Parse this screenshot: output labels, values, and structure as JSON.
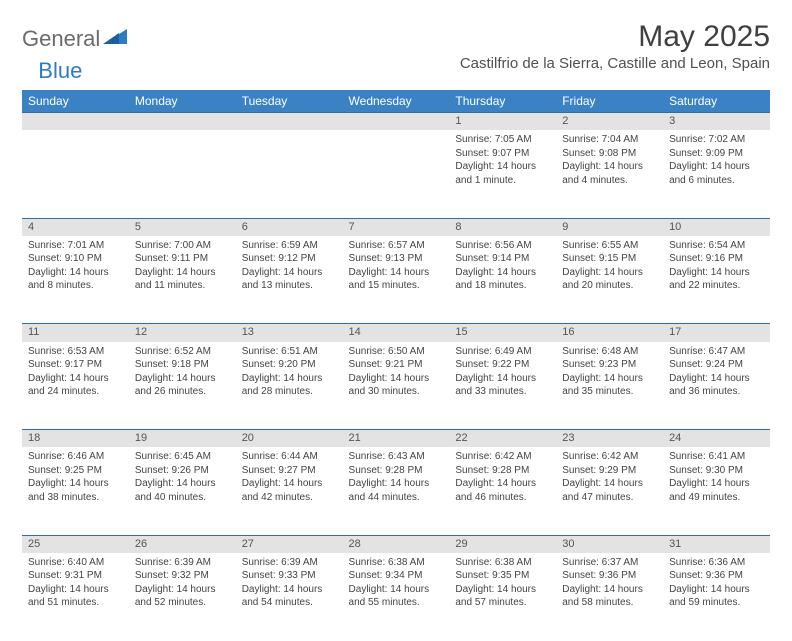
{
  "brand": {
    "general": "General",
    "blue": "Blue",
    "logo_color": "#2f7bbf"
  },
  "title": "May 2025",
  "location": "Castilfrio de la Sierra, Castille and Leon, Spain",
  "header_bg": "#3b82c4",
  "daynum_bg": "#e3e3e3",
  "border_color": "#2f6fa8",
  "weekdays": [
    "Sunday",
    "Monday",
    "Tuesday",
    "Wednesday",
    "Thursday",
    "Friday",
    "Saturday"
  ],
  "weeks": [
    {
      "nums": [
        "",
        "",
        "",
        "",
        "1",
        "2",
        "3"
      ],
      "cells": [
        null,
        null,
        null,
        null,
        {
          "sunrise": "Sunrise: 7:05 AM",
          "sunset": "Sunset: 9:07 PM",
          "day1": "Daylight: 14 hours",
          "day2": "and 1 minute."
        },
        {
          "sunrise": "Sunrise: 7:04 AM",
          "sunset": "Sunset: 9:08 PM",
          "day1": "Daylight: 14 hours",
          "day2": "and 4 minutes."
        },
        {
          "sunrise": "Sunrise: 7:02 AM",
          "sunset": "Sunset: 9:09 PM",
          "day1": "Daylight: 14 hours",
          "day2": "and 6 minutes."
        }
      ]
    },
    {
      "nums": [
        "4",
        "5",
        "6",
        "7",
        "8",
        "9",
        "10"
      ],
      "cells": [
        {
          "sunrise": "Sunrise: 7:01 AM",
          "sunset": "Sunset: 9:10 PM",
          "day1": "Daylight: 14 hours",
          "day2": "and 8 minutes."
        },
        {
          "sunrise": "Sunrise: 7:00 AM",
          "sunset": "Sunset: 9:11 PM",
          "day1": "Daylight: 14 hours",
          "day2": "and 11 minutes."
        },
        {
          "sunrise": "Sunrise: 6:59 AM",
          "sunset": "Sunset: 9:12 PM",
          "day1": "Daylight: 14 hours",
          "day2": "and 13 minutes."
        },
        {
          "sunrise": "Sunrise: 6:57 AM",
          "sunset": "Sunset: 9:13 PM",
          "day1": "Daylight: 14 hours",
          "day2": "and 15 minutes."
        },
        {
          "sunrise": "Sunrise: 6:56 AM",
          "sunset": "Sunset: 9:14 PM",
          "day1": "Daylight: 14 hours",
          "day2": "and 18 minutes."
        },
        {
          "sunrise": "Sunrise: 6:55 AM",
          "sunset": "Sunset: 9:15 PM",
          "day1": "Daylight: 14 hours",
          "day2": "and 20 minutes."
        },
        {
          "sunrise": "Sunrise: 6:54 AM",
          "sunset": "Sunset: 9:16 PM",
          "day1": "Daylight: 14 hours",
          "day2": "and 22 minutes."
        }
      ]
    },
    {
      "nums": [
        "11",
        "12",
        "13",
        "14",
        "15",
        "16",
        "17"
      ],
      "cells": [
        {
          "sunrise": "Sunrise: 6:53 AM",
          "sunset": "Sunset: 9:17 PM",
          "day1": "Daylight: 14 hours",
          "day2": "and 24 minutes."
        },
        {
          "sunrise": "Sunrise: 6:52 AM",
          "sunset": "Sunset: 9:18 PM",
          "day1": "Daylight: 14 hours",
          "day2": "and 26 minutes."
        },
        {
          "sunrise": "Sunrise: 6:51 AM",
          "sunset": "Sunset: 9:20 PM",
          "day1": "Daylight: 14 hours",
          "day2": "and 28 minutes."
        },
        {
          "sunrise": "Sunrise: 6:50 AM",
          "sunset": "Sunset: 9:21 PM",
          "day1": "Daylight: 14 hours",
          "day2": "and 30 minutes."
        },
        {
          "sunrise": "Sunrise: 6:49 AM",
          "sunset": "Sunset: 9:22 PM",
          "day1": "Daylight: 14 hours",
          "day2": "and 33 minutes."
        },
        {
          "sunrise": "Sunrise: 6:48 AM",
          "sunset": "Sunset: 9:23 PM",
          "day1": "Daylight: 14 hours",
          "day2": "and 35 minutes."
        },
        {
          "sunrise": "Sunrise: 6:47 AM",
          "sunset": "Sunset: 9:24 PM",
          "day1": "Daylight: 14 hours",
          "day2": "and 36 minutes."
        }
      ]
    },
    {
      "nums": [
        "18",
        "19",
        "20",
        "21",
        "22",
        "23",
        "24"
      ],
      "cells": [
        {
          "sunrise": "Sunrise: 6:46 AM",
          "sunset": "Sunset: 9:25 PM",
          "day1": "Daylight: 14 hours",
          "day2": "and 38 minutes."
        },
        {
          "sunrise": "Sunrise: 6:45 AM",
          "sunset": "Sunset: 9:26 PM",
          "day1": "Daylight: 14 hours",
          "day2": "and 40 minutes."
        },
        {
          "sunrise": "Sunrise: 6:44 AM",
          "sunset": "Sunset: 9:27 PM",
          "day1": "Daylight: 14 hours",
          "day2": "and 42 minutes."
        },
        {
          "sunrise": "Sunrise: 6:43 AM",
          "sunset": "Sunset: 9:28 PM",
          "day1": "Daylight: 14 hours",
          "day2": "and 44 minutes."
        },
        {
          "sunrise": "Sunrise: 6:42 AM",
          "sunset": "Sunset: 9:28 PM",
          "day1": "Daylight: 14 hours",
          "day2": "and 46 minutes."
        },
        {
          "sunrise": "Sunrise: 6:42 AM",
          "sunset": "Sunset: 9:29 PM",
          "day1": "Daylight: 14 hours",
          "day2": "and 47 minutes."
        },
        {
          "sunrise": "Sunrise: 6:41 AM",
          "sunset": "Sunset: 9:30 PM",
          "day1": "Daylight: 14 hours",
          "day2": "and 49 minutes."
        }
      ]
    },
    {
      "nums": [
        "25",
        "26",
        "27",
        "28",
        "29",
        "30",
        "31"
      ],
      "cells": [
        {
          "sunrise": "Sunrise: 6:40 AM",
          "sunset": "Sunset: 9:31 PM",
          "day1": "Daylight: 14 hours",
          "day2": "and 51 minutes."
        },
        {
          "sunrise": "Sunrise: 6:39 AM",
          "sunset": "Sunset: 9:32 PM",
          "day1": "Daylight: 14 hours",
          "day2": "and 52 minutes."
        },
        {
          "sunrise": "Sunrise: 6:39 AM",
          "sunset": "Sunset: 9:33 PM",
          "day1": "Daylight: 14 hours",
          "day2": "and 54 minutes."
        },
        {
          "sunrise": "Sunrise: 6:38 AM",
          "sunset": "Sunset: 9:34 PM",
          "day1": "Daylight: 14 hours",
          "day2": "and 55 minutes."
        },
        {
          "sunrise": "Sunrise: 6:38 AM",
          "sunset": "Sunset: 9:35 PM",
          "day1": "Daylight: 14 hours",
          "day2": "and 57 minutes."
        },
        {
          "sunrise": "Sunrise: 6:37 AM",
          "sunset": "Sunset: 9:36 PM",
          "day1": "Daylight: 14 hours",
          "day2": "and 58 minutes."
        },
        {
          "sunrise": "Sunrise: 6:36 AM",
          "sunset": "Sunset: 9:36 PM",
          "day1": "Daylight: 14 hours",
          "day2": "and 59 minutes."
        }
      ]
    }
  ]
}
